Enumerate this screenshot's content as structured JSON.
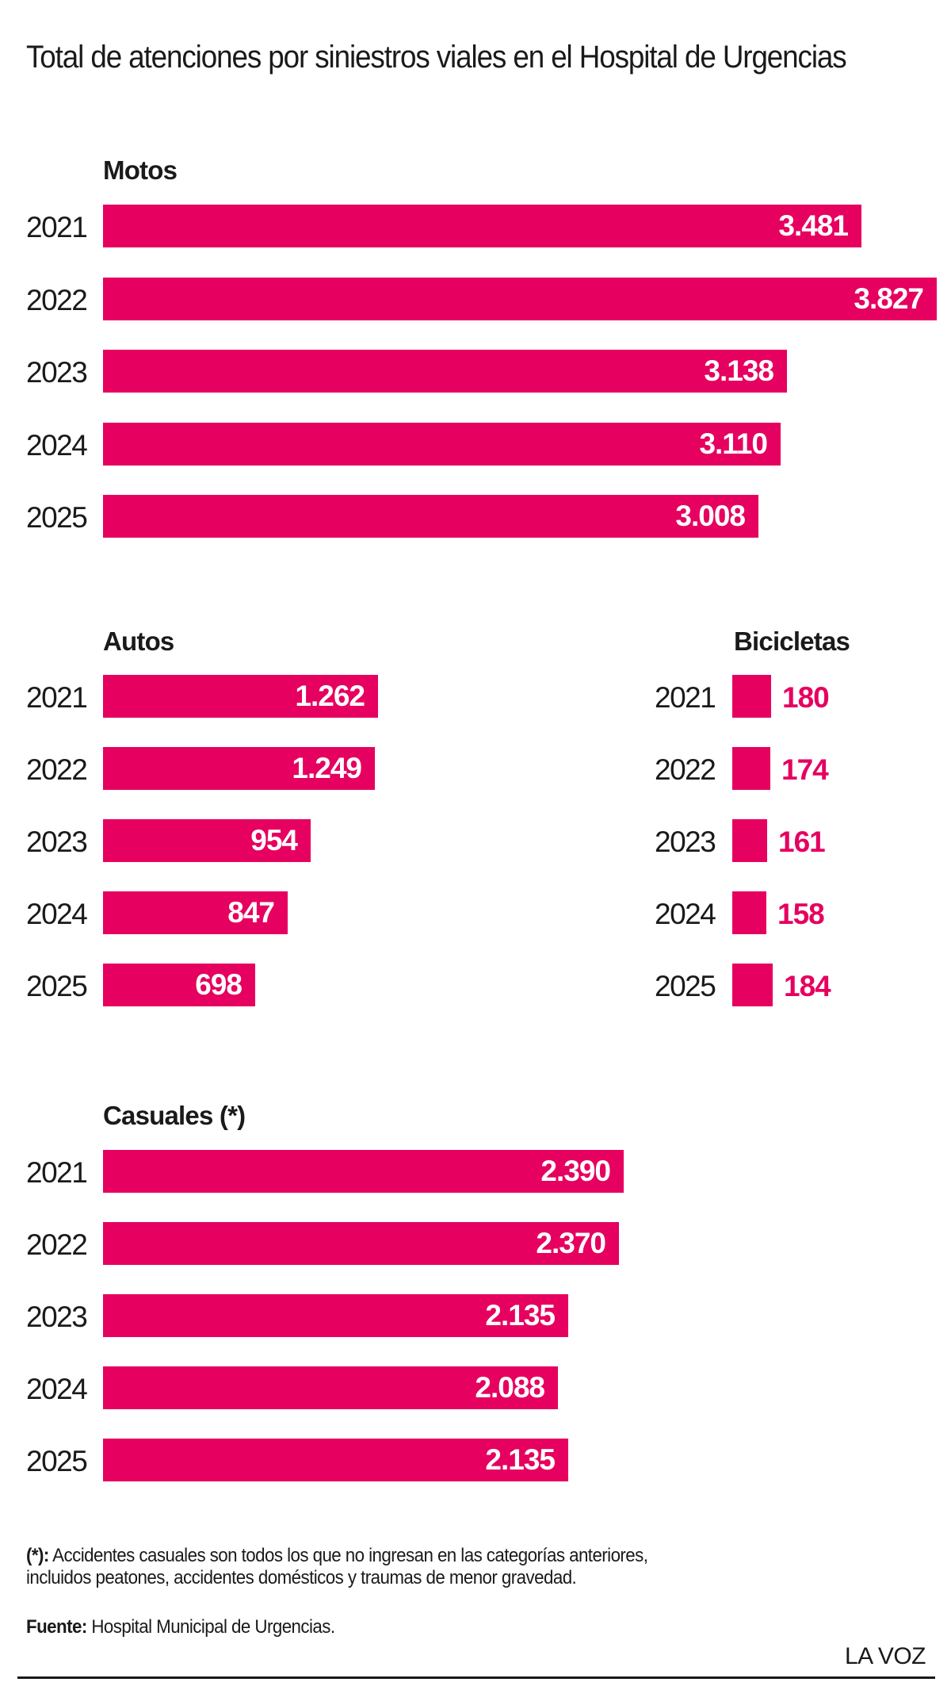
{
  "title": "Total de atenciones por siniestros viales en el Hospital de Urgencias",
  "chart_data": [
    {
      "type": "bar",
      "orientation": "horizontal",
      "title": "Motos",
      "categories": [
        "2021",
        "2022",
        "2023",
        "2024",
        "2025"
      ],
      "values": [
        3481,
        3827,
        3138,
        3110,
        3008
      ],
      "labels": [
        "3.481",
        "3.827",
        "3.138",
        "3.110",
        "3.008"
      ],
      "color": "#e6005f",
      "label_position": "inside"
    },
    {
      "type": "bar",
      "orientation": "horizontal",
      "title": "Autos",
      "categories": [
        "2021",
        "2022",
        "2023",
        "2024",
        "2025"
      ],
      "values": [
        1262,
        1249,
        954,
        847,
        698
      ],
      "labels": [
        "1.262",
        "1.249",
        "954",
        "847",
        "698"
      ],
      "color": "#e6005f",
      "label_position": "inside"
    },
    {
      "type": "bar",
      "orientation": "horizontal",
      "title": "Bicicletas",
      "categories": [
        "2021",
        "2022",
        "2023",
        "2024",
        "2025"
      ],
      "values": [
        180,
        174,
        161,
        158,
        184
      ],
      "labels": [
        "180",
        "174",
        "161",
        "158",
        "184"
      ],
      "color": "#e6005f",
      "label_position": "outside"
    },
    {
      "type": "bar",
      "orientation": "horizontal",
      "title": "Casuales (*)",
      "categories": [
        "2021",
        "2022",
        "2023",
        "2024",
        "2025"
      ],
      "values": [
        2390,
        2370,
        2135,
        2088,
        2135
      ],
      "labels": [
        "2.390",
        "2.370",
        "2.135",
        "2.088",
        "2.135"
      ],
      "color": "#e6005f",
      "label_position": "inside"
    }
  ],
  "footnote": {
    "marker": "(*):",
    "text": " Accidentes casuales son todos los que no ingresan en las categorías anteriores, incluidos peatones, accidentes domésticos y traumas de menor gravedad."
  },
  "source": {
    "label": "Fuente:",
    "text": " Hospital Municipal de Urgencias."
  },
  "brand": "LA VOZ"
}
